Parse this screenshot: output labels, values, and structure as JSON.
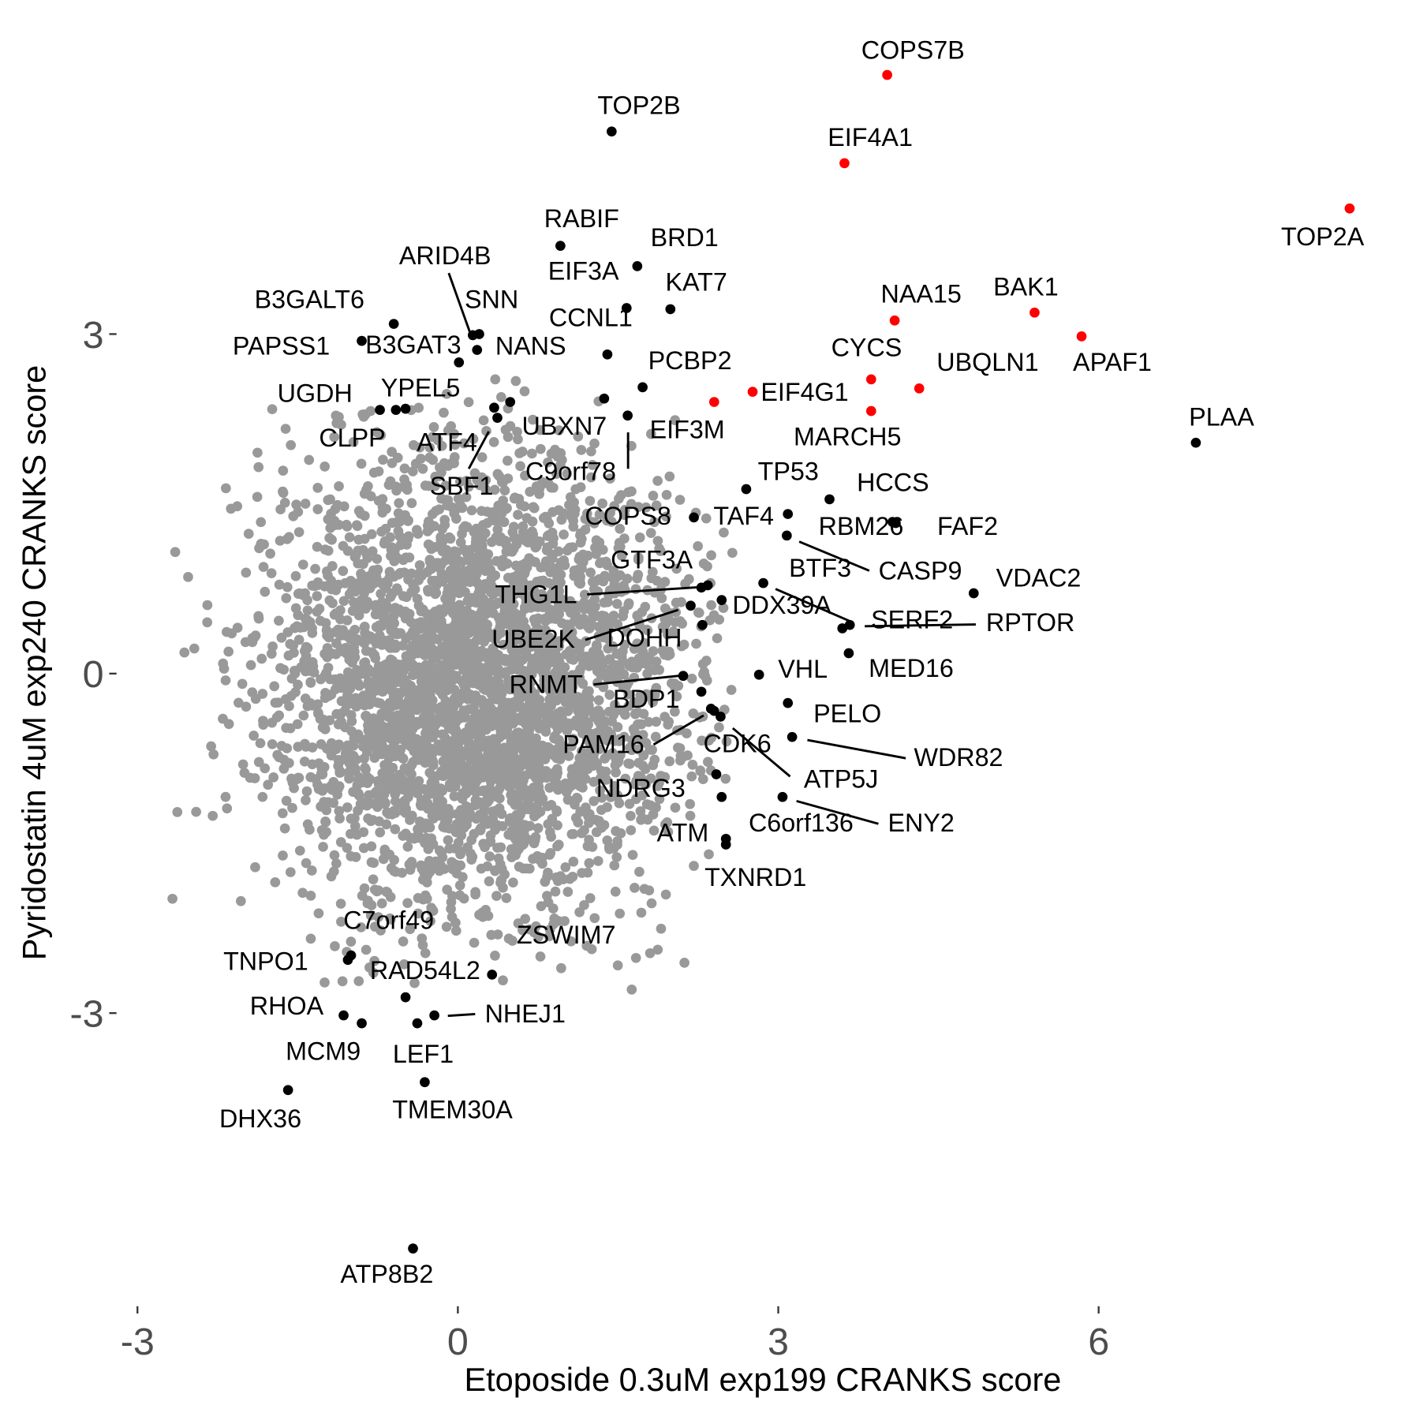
{
  "chart_data": {
    "type": "scatter",
    "title": "",
    "xlabel": "Etoposide 0.3uM exp199 CRANKS score",
    "ylabel": "Pyridostatin 4uM exp240 CRANKS score",
    "xlim": [
      -3.3,
      8.6
    ],
    "ylim": [
      -5.6,
      5.9
    ],
    "xticks": [
      "-3",
      "0",
      "3",
      "6"
    ],
    "yticks": [
      "-3",
      "0",
      "3"
    ],
    "grid": false,
    "colors": {
      "background": "#999999",
      "highlight": "#ff0000",
      "labeled": "#000000"
    },
    "background_points": {
      "n": 3600,
      "center": [
        0.15,
        -0.1
      ],
      "sd": [
        0.95,
        1.0
      ],
      "seed": 7
    },
    "highlight_points": [
      {
        "label": "COPS7B",
        "x": 4.02,
        "y": 5.29
      },
      {
        "label": "EIF4A1",
        "x": 3.62,
        "y": 4.51
      },
      {
        "label": "TOP2A",
        "x": 8.35,
        "y": 4.11
      },
      {
        "label": "NAA15",
        "x": 4.09,
        "y": 3.12
      },
      {
        "label": "BAK1",
        "x": 5.4,
        "y": 3.19
      },
      {
        "label": "APAF1",
        "x": 5.84,
        "y": 2.98
      },
      {
        "label": "CYCS",
        "x": 3.87,
        "y": 2.6
      },
      {
        "label": "UBQLN1",
        "x": 4.32,
        "y": 2.52
      },
      {
        "label": "MARCH5",
        "x": 3.87,
        "y": 2.32
      },
      {
        "label": "EIF4G1",
        "x": 2.76,
        "y": 2.49
      },
      {
        "label": "",
        "x": 2.4,
        "y": 2.4
      }
    ],
    "labeled_points": [
      {
        "label": "TOP2B",
        "x": 1.44,
        "y": 4.79
      },
      {
        "label": "RABIF",
        "x": 0.96,
        "y": 3.78
      },
      {
        "label": "BRD1",
        "x": 1.68,
        "y": 3.6
      },
      {
        "label": "EIF3A",
        "x": 1.58,
        "y": 3.23
      },
      {
        "label": "KAT7",
        "x": 1.99,
        "y": 3.22
      },
      {
        "label": "CCNL1",
        "x": 1.4,
        "y": 2.82
      },
      {
        "label": "PCBP2",
        "x": 1.73,
        "y": 2.53
      },
      {
        "label": "EIF3M",
        "x": 1.59,
        "y": 2.28
      },
      {
        "label": "C9orf78",
        "x": 1.37,
        "y": 2.43
      },
      {
        "label": "PLAA",
        "x": 6.91,
        "y": 2.04
      },
      {
        "label": "ARID4B",
        "x": 0.14,
        "y": 2.99
      },
      {
        "label": "SNN",
        "x": 0.2,
        "y": 3.0
      },
      {
        "label": "NANS",
        "x": 0.18,
        "y": 2.86
      },
      {
        "label": "B3GALT6",
        "x": -0.6,
        "y": 3.09
      },
      {
        "label": "PAPSS1",
        "x": -0.9,
        "y": 2.94
      },
      {
        "label": "B3GAT3",
        "x": 0.01,
        "y": 2.75
      },
      {
        "label": "YPEL5",
        "x": -0.49,
        "y": 2.34
      },
      {
        "label": "UGDH",
        "x": -0.73,
        "y": 2.33
      },
      {
        "label": "CLPP",
        "x": -0.58,
        "y": 2.33
      },
      {
        "label": "ATF4",
        "x": 0.34,
        "y": 2.35
      },
      {
        "label": "UBXN7",
        "x": 0.49,
        "y": 2.4
      },
      {
        "label": "SBF1",
        "x": 0.37,
        "y": 2.26
      },
      {
        "label": "TP53",
        "x": 2.7,
        "y": 1.63
      },
      {
        "label": "HCCS",
        "x": 3.48,
        "y": 1.54
      },
      {
        "label": "COPS8",
        "x": 2.21,
        "y": 1.38
      },
      {
        "label": "TAF4",
        "x": 3.09,
        "y": 1.41
      },
      {
        "label": "RBM26",
        "x": 4.07,
        "y": 1.34
      },
      {
        "label": "FAF2",
        "x": 4.1,
        "y": 1.33
      },
      {
        "label": "CASP9",
        "x": 3.08,
        "y": 1.22
      },
      {
        "label": "BTF3",
        "x": 2.86,
        "y": 0.8
      },
      {
        "label": "GTF3A",
        "x": 2.34,
        "y": 0.78
      },
      {
        "label": "THG1L",
        "x": 2.28,
        "y": 0.76
      },
      {
        "label": "VDAC2",
        "x": 4.83,
        "y": 0.71
      },
      {
        "label": "DDX39A",
        "x": 2.47,
        "y": 0.65
      },
      {
        "label": "UBE2K",
        "x": 2.18,
        "y": 0.6
      },
      {
        "label": "SERF2",
        "x": 3.67,
        "y": 0.43
      },
      {
        "label": "RPTOR",
        "x": 3.6,
        "y": 0.4
      },
      {
        "label": "DOHH",
        "x": 2.29,
        "y": 0.43
      },
      {
        "label": "MED16",
        "x": 3.66,
        "y": 0.18
      },
      {
        "label": "VHL",
        "x": 2.82,
        "y": -0.01
      },
      {
        "label": "RNMT",
        "x": 2.11,
        "y": -0.02
      },
      {
        "label": "BDP1",
        "x": 2.28,
        "y": -0.16
      },
      {
        "label": "PELO",
        "x": 3.09,
        "y": -0.26
      },
      {
        "label": "PAM16",
        "x": 2.37,
        "y": -0.31
      },
      {
        "label": "CDK6",
        "x": 2.46,
        "y": -0.38
      },
      {
        "label": "WDR82",
        "x": 3.13,
        "y": -0.56
      },
      {
        "label": "ATP5J",
        "x": 2.4,
        "y": -0.33
      },
      {
        "label": "NDRG3",
        "x": 2.42,
        "y": -0.89
      },
      {
        "label": "C6orf136",
        "x": 2.47,
        "y": -1.09
      },
      {
        "label": "ENY2",
        "x": 3.04,
        "y": -1.09
      },
      {
        "label": "ATM",
        "x": 2.51,
        "y": -1.46
      },
      {
        "label": "TXNRD1",
        "x": 2.51,
        "y": -1.51
      },
      {
        "label": "C7orf49",
        "x": -1.0,
        "y": -2.49
      },
      {
        "label": "ZSWIM7",
        "x": -0.49,
        "y": -2.86
      },
      {
        "label": "TNPO1",
        "x": -1.03,
        "y": -2.53
      },
      {
        "label": "RAD54L2",
        "x": 0.32,
        "y": -2.66
      },
      {
        "label": "RHOA",
        "x": -1.07,
        "y": -3.02
      },
      {
        "label": "NHEJ1",
        "x": -0.22,
        "y": -3.02
      },
      {
        "label": "MCM9",
        "x": -0.9,
        "y": -3.09
      },
      {
        "label": "LEF1",
        "x": -0.38,
        "y": -3.09
      },
      {
        "label": "DHX36",
        "x": -1.59,
        "y": -3.68
      },
      {
        "label": "TMEM30A",
        "x": -0.31,
        "y": -3.61
      },
      {
        "label": "ATP8B2",
        "x": -0.42,
        "y": -5.08
      }
    ]
  }
}
